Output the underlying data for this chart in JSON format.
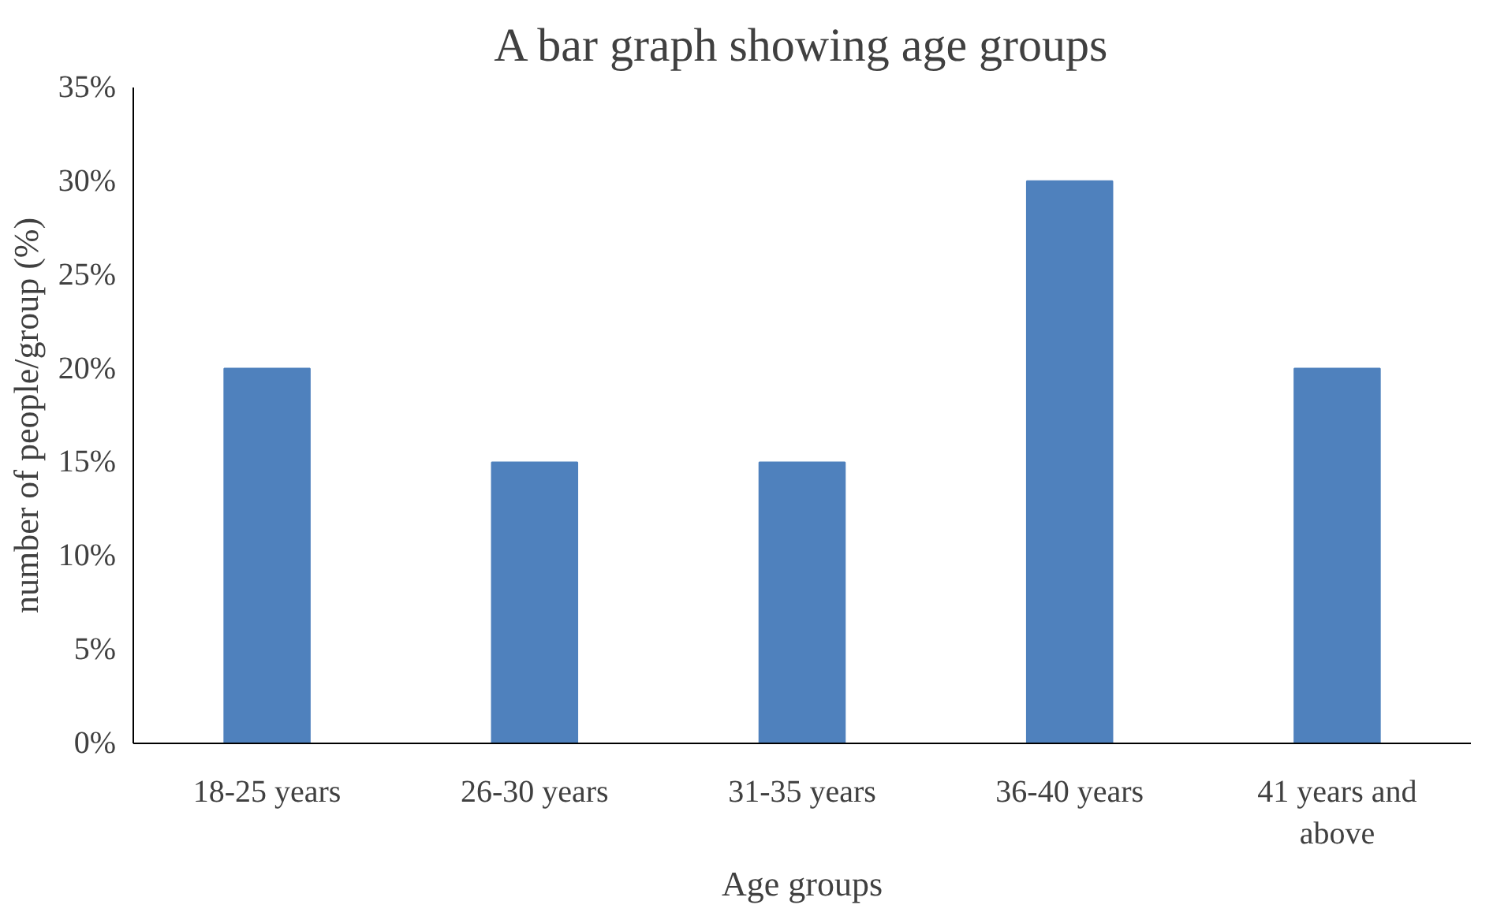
{
  "chart_data": {
    "type": "bar",
    "title": "A bar graph showing age groups",
    "xlabel": "Age groups",
    "ylabel": "number of people/group (%)",
    "categories": [
      "18-25 years",
      "26-30 years",
      "31-35 years",
      "36-40 years",
      "41 years and above"
    ],
    "values": [
      20,
      15,
      15,
      30,
      20
    ],
    "color": "#4f81bd",
    "ylim": [
      0,
      35
    ],
    "yticks": [
      {
        "value": 0,
        "label": "0%"
      },
      {
        "value": 5,
        "label": "5%"
      },
      {
        "value": 10,
        "label": "10%"
      },
      {
        "value": 15,
        "label": "15%"
      },
      {
        "value": 20,
        "label": "20%"
      },
      {
        "value": 25,
        "label": "25%"
      },
      {
        "value": 30,
        "label": "30%"
      },
      {
        "value": 35,
        "label": "35%"
      }
    ],
    "grid": false
  }
}
